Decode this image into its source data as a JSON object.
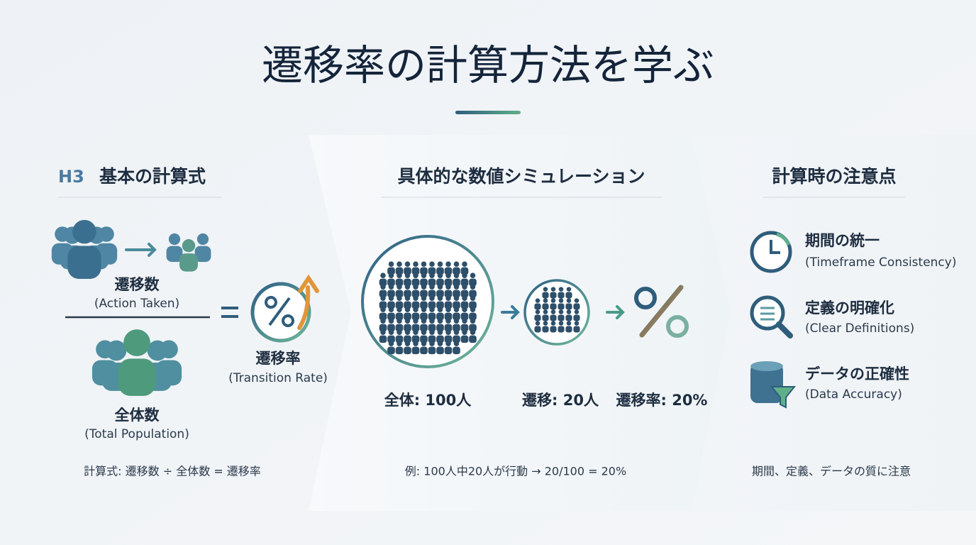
{
  "title": "遷移率の計算方法を学ぶ",
  "panels": [
    {
      "badge": "H3",
      "heading": "基本の計算式",
      "numerator": {
        "label": "遷移数",
        "sub": "(Action Taken)"
      },
      "denominator": {
        "label": "全体数",
        "sub": "(Total Population)"
      },
      "result": {
        "label": "遷移率",
        "sub": "(Transition Rate)"
      },
      "footer": "計算式: 遷移数 ÷ 全体数 = 遷移率"
    },
    {
      "heading": "具体的な数値シミュレーション",
      "steps": [
        {
          "label": "全体: 100人"
        },
        {
          "label": "遷移: 20人"
        },
        {
          "label": "遷移率: 20%"
        }
      ],
      "footer": "例: 100人中20人が行動 → 20/100 = 20%"
    },
    {
      "heading": "計算時の注意点",
      "items": [
        {
          "label": "期間の統一",
          "sub": "(Timeframe Consistency)"
        },
        {
          "label": "定義の明確化",
          "sub": "(Clear Definitions)"
        },
        {
          "label": "データの正確性",
          "sub": "(Data Accuracy)"
        }
      ],
      "footer": "期間、定義、データの質に注意"
    }
  ]
}
